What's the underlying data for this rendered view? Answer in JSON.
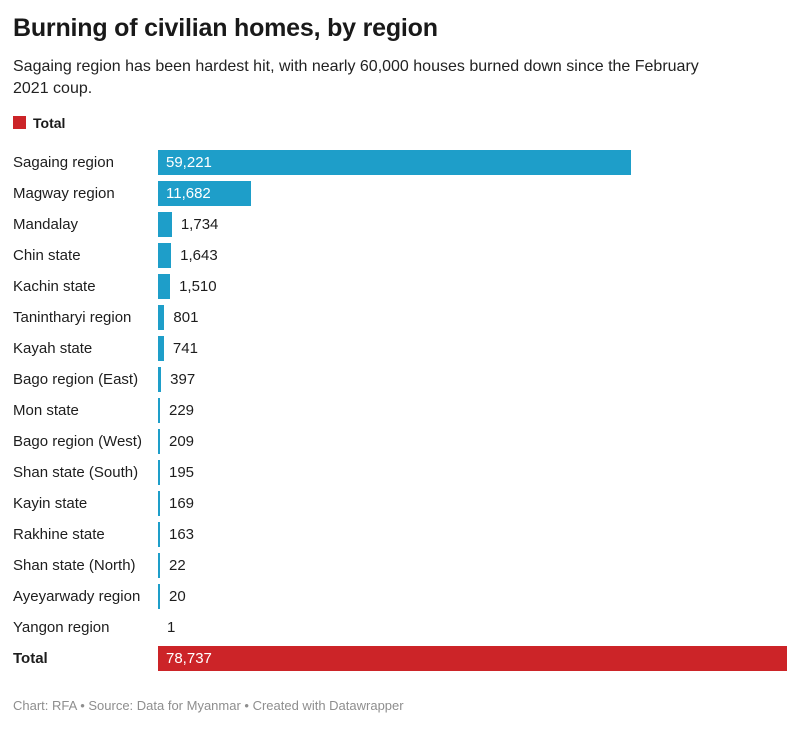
{
  "header": {
    "title": "Burning of civilian homes, by region",
    "subtitle": "Sagaing region has been hardest hit, with nearly 60,000 houses burned down since the February\n2021 coup."
  },
  "legend": {
    "label": "Total",
    "swatch_color": "#cc2428"
  },
  "colors": {
    "bar_blue": "#1e9ec9",
    "bar_red": "#cc2428",
    "title_text": "#191919",
    "body_text": "#222222",
    "footer_text": "#8e8e8e",
    "inside_value_text": "#ffffff"
  },
  "chart_data": {
    "type": "bar",
    "orientation": "horizontal",
    "title": "Burning of civilian homes, by region",
    "xlabel": "",
    "ylabel": "",
    "xlim": [
      0,
      78737
    ],
    "grid": false,
    "legend_position": "top-left",
    "categories": [
      "Sagaing region",
      "Magway region",
      "Mandalay",
      "Chin state",
      "Kachin state",
      "Tanintharyi region",
      "Kayah state",
      "Bago region (East)",
      "Mon state",
      "Bago region (West)",
      "Shan state (South)",
      "Kayin state",
      "Rakhine state",
      "Shan state (North)",
      "Ayeyarwady region",
      "Yangon region",
      "Total"
    ],
    "values": [
      59221,
      11682,
      1734,
      1643,
      1510,
      801,
      741,
      397,
      229,
      209,
      195,
      169,
      163,
      22,
      20,
      1,
      78737
    ],
    "rows": [
      {
        "label": "Sagaing region",
        "value": 59221,
        "display": "59,221",
        "role": "region"
      },
      {
        "label": "Magway region",
        "value": 11682,
        "display": "11,682",
        "role": "region"
      },
      {
        "label": "Mandalay",
        "value": 1734,
        "display": "1,734",
        "role": "region"
      },
      {
        "label": "Chin state",
        "value": 1643,
        "display": "1,643",
        "role": "region"
      },
      {
        "label": "Kachin state",
        "value": 1510,
        "display": "1,510",
        "role": "region"
      },
      {
        "label": "Tanintharyi region",
        "value": 801,
        "display": "801",
        "role": "region"
      },
      {
        "label": "Kayah state",
        "value": 741,
        "display": "741",
        "role": "region"
      },
      {
        "label": "Bago region (East)",
        "value": 397,
        "display": "397",
        "role": "region"
      },
      {
        "label": "Mon state",
        "value": 229,
        "display": "229",
        "role": "region"
      },
      {
        "label": "Bago region (West)",
        "value": 209,
        "display": "209",
        "role": "region"
      },
      {
        "label": "Shan state (South)",
        "value": 195,
        "display": "195",
        "role": "region"
      },
      {
        "label": "Kayin state",
        "value": 169,
        "display": "169",
        "role": "region"
      },
      {
        "label": "Rakhine state",
        "value": 163,
        "display": "163",
        "role": "region"
      },
      {
        "label": "Shan state (North)",
        "value": 22,
        "display": "22",
        "role": "region"
      },
      {
        "label": "Ayeyarwady region",
        "value": 20,
        "display": "20",
        "role": "region"
      },
      {
        "label": "Yangon region",
        "value": 1,
        "display": "1",
        "role": "region"
      },
      {
        "label": "Total",
        "value": 78737,
        "display": "78,737",
        "role": "total"
      }
    ]
  },
  "footer": {
    "text": "Chart: RFA • Source: Data for Myanmar • Created with Datawrapper"
  }
}
